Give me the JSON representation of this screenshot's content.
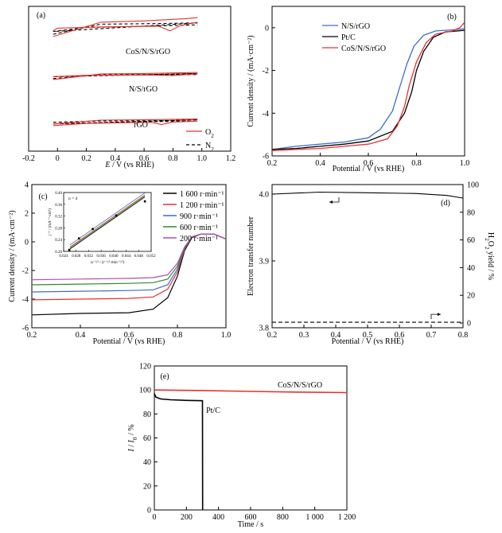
{
  "figure": "multi-panel electrochemistry figure",
  "chart_data": [
    {
      "panel": "(a)",
      "type": "line",
      "xlabel_italic": "E",
      "xlabel_rest": " / V (vs RHE)",
      "ylabel": "",
      "xlim": [
        -0.2,
        1.2
      ],
      "xticks": [
        "-0.2",
        "0",
        "0.2",
        "0.4",
        "0.6",
        "0.8",
        "1.0",
        "1.2"
      ],
      "legend": [
        {
          "name": "O",
          "sub": "2",
          "color": "#e8322f",
          "dash": false
        },
        {
          "name": "N",
          "sub": "2",
          "color": "#000000",
          "dash": true
        }
      ],
      "labels": [
        "CoS/N/S/rGO",
        "N/S/rGO",
        "rGO"
      ],
      "description": "Cyclic voltammograms in O2 (red) and N2 (black dashed) saturated electrolyte",
      "cv_series": [
        {
          "name": "CoS/N/S/rGO",
          "o2_reduction_peak_V": 0.77,
          "o2_anodic": [
            [
              -0.03,
              0.43
            ],
            [
              0.3,
              0.86
            ],
            [
              0.6,
              0.9
            ],
            [
              0.9,
              0.97
            ],
            [
              0.97,
              1.0
            ]
          ],
          "o2_cathodic": [
            [
              0.97,
              0.86
            ],
            [
              0.85,
              0.76
            ],
            [
              0.78,
              0.6
            ],
            [
              0.7,
              0.74
            ],
            [
              0.3,
              0.72
            ],
            [
              0.0,
              0.68
            ],
            [
              -0.03,
              0.6
            ]
          ],
          "n2_anodic": [
            [
              -0.03,
              0.5
            ],
            [
              0.3,
              0.8
            ],
            [
              0.7,
              0.82
            ],
            [
              0.97,
              0.84
            ]
          ],
          "n2_cathodic": [
            [
              0.97,
              0.78
            ],
            [
              0.6,
              0.74
            ],
            [
              0.2,
              0.7
            ],
            [
              -0.03,
              0.58
            ]
          ]
        },
        {
          "name": "N/S/rGO",
          "o2_reduction_peak_V": 0.8,
          "o2_anodic": [
            [
              -0.03,
              0.16
            ],
            [
              0.3,
              0.48
            ],
            [
              0.6,
              0.5
            ],
            [
              0.97,
              0.56
            ]
          ],
          "o2_cathodic": [
            [
              0.97,
              0.48
            ],
            [
              0.8,
              0.39
            ],
            [
              0.6,
              0.42
            ],
            [
              0.2,
              0.4
            ],
            [
              -0.03,
              0.33
            ]
          ],
          "n2_anodic": [
            [
              -0.03,
              0.22
            ],
            [
              0.3,
              0.44
            ],
            [
              0.7,
              0.45
            ],
            [
              0.97,
              0.5
            ]
          ],
          "n2_cathodic": [
            [
              0.97,
              0.44
            ],
            [
              0.6,
              0.42
            ],
            [
              0.2,
              0.4
            ],
            [
              -0.03,
              0.32
            ]
          ]
        },
        {
          "name": "rGO",
          "o2_reduction_peak_V": 0.72,
          "o2_anodic": [
            [
              -0.03,
              0.02
            ],
            [
              0.3,
              0.16
            ],
            [
              0.6,
              0.17
            ],
            [
              0.97,
              0.2
            ]
          ],
          "o2_cathodic": [
            [
              0.97,
              0.12
            ],
            [
              0.8,
              0.09
            ],
            [
              0.72,
              0.0
            ],
            [
              0.65,
              0.08
            ],
            [
              0.2,
              0.04
            ],
            [
              -0.03,
              -0.04
            ]
          ],
          "n2_anodic": [
            [
              -0.03,
              0.08
            ],
            [
              0.3,
              0.13
            ],
            [
              0.7,
              0.14
            ],
            [
              0.97,
              0.17
            ]
          ],
          "n2_cathodic": [
            [
              0.97,
              0.12
            ],
            [
              0.6,
              0.1
            ],
            [
              0.2,
              0.06
            ],
            [
              -0.03,
              0.02
            ]
          ]
        }
      ]
    },
    {
      "panel": "(b)",
      "type": "line",
      "xlabel": "Potential / V (vs RHE)",
      "ylabel": "Current density / (mA·cm⁻²)",
      "xlim": [
        0.2,
        1.0
      ],
      "ylim": [
        -6,
        1
      ],
      "xticks": [
        "0.2",
        "0.4",
        "0.6",
        "0.8",
        "1.0"
      ],
      "yticks": [
        "0",
        "-2",
        "-4",
        "-6"
      ],
      "series": [
        {
          "name": "N/S/rGO",
          "color": "#3f6fc4",
          "points": [
            [
              0.2,
              -5.7
            ],
            [
              0.3,
              -5.55
            ],
            [
              0.4,
              -5.45
            ],
            [
              0.5,
              -5.35
            ],
            [
              0.6,
              -5.15
            ],
            [
              0.65,
              -4.75
            ],
            [
              0.7,
              -3.9
            ],
            [
              0.73,
              -2.8
            ],
            [
              0.76,
              -1.7
            ],
            [
              0.79,
              -0.85
            ],
            [
              0.83,
              -0.35
            ],
            [
              0.88,
              -0.15
            ],
            [
              0.95,
              -0.1
            ],
            [
              1.0,
              -0.05
            ]
          ]
        },
        {
          "name": "Pt/C",
          "color": "#000000",
          "points": [
            [
              0.2,
              -5.7
            ],
            [
              0.3,
              -5.65
            ],
            [
              0.4,
              -5.55
            ],
            [
              0.5,
              -5.45
            ],
            [
              0.6,
              -5.3
            ],
            [
              0.7,
              -4.85
            ],
            [
              0.75,
              -4.0
            ],
            [
              0.78,
              -3.0
            ],
            [
              0.8,
              -2.0
            ],
            [
              0.83,
              -1.1
            ],
            [
              0.87,
              -0.45
            ],
            [
              0.92,
              -0.2
            ],
            [
              1.0,
              -0.12
            ]
          ]
        },
        {
          "name": "CoS/N/S/rGO",
          "color": "#e8322f",
          "points": [
            [
              0.2,
              -5.75
            ],
            [
              0.3,
              -5.7
            ],
            [
              0.4,
              -5.65
            ],
            [
              0.5,
              -5.55
            ],
            [
              0.6,
              -5.45
            ],
            [
              0.68,
              -5.2
            ],
            [
              0.72,
              -4.6
            ],
            [
              0.75,
              -3.7
            ],
            [
              0.77,
              -2.7
            ],
            [
              0.8,
              -1.6
            ],
            [
              0.84,
              -0.7
            ],
            [
              0.88,
              -0.3
            ],
            [
              0.95,
              -0.15
            ],
            [
              0.98,
              0.0
            ],
            [
              1.0,
              0.25
            ]
          ]
        }
      ]
    },
    {
      "panel": "(c)",
      "type": "line",
      "xlabel": "Potential / V (vs RHE)",
      "ylabel": "Current density / (mA·cm⁻²)",
      "xlim": [
        0.2,
        1.0
      ],
      "ylim": [
        -6,
        4
      ],
      "xticks": [
        "0.2",
        "0.4",
        "0.6",
        "0.8",
        "1.0"
      ],
      "yticks": [
        "4",
        "2",
        "0",
        "-2",
        "-4",
        "-6"
      ],
      "series": [
        {
          "name": "1 600 r·min⁻¹",
          "color": "#000000",
          "plateau": -5.1,
          "points": [
            [
              0.2,
              -5.1
            ],
            [
              0.4,
              -5.0
            ],
            [
              0.6,
              -4.95
            ],
            [
              0.7,
              -4.7
            ],
            [
              0.76,
              -3.9
            ],
            [
              0.8,
              -2.4
            ],
            [
              0.83,
              -0.6
            ],
            [
              0.86,
              0.3
            ],
            [
              0.9,
              0.55
            ],
            [
              0.95,
              0.55
            ],
            [
              1.0,
              0.2
            ]
          ]
        },
        {
          "name": "1 200 r·min⁻¹",
          "color": "#e8322f",
          "plateau": -4.05,
          "points": [
            [
              0.2,
              -4.05
            ],
            [
              0.4,
              -4.0
            ],
            [
              0.6,
              -3.95
            ],
            [
              0.7,
              -3.85
            ],
            [
              0.76,
              -3.3
            ],
            [
              0.8,
              -2.1
            ],
            [
              0.83,
              -0.5
            ],
            [
              0.86,
              0.35
            ],
            [
              0.9,
              0.55
            ],
            [
              0.95,
              0.55
            ],
            [
              1.0,
              0.2
            ]
          ]
        },
        {
          "name": "900 r·min⁻¹",
          "color": "#3f6fc4",
          "plateau": -3.5,
          "points": [
            [
              0.2,
              -3.5
            ],
            [
              0.4,
              -3.45
            ],
            [
              0.6,
              -3.4
            ],
            [
              0.7,
              -3.35
            ],
            [
              0.76,
              -3.0
            ],
            [
              0.8,
              -1.9
            ],
            [
              0.83,
              -0.45
            ],
            [
              0.86,
              0.35
            ],
            [
              0.9,
              0.55
            ],
            [
              0.95,
              0.55
            ],
            [
              1.0,
              0.2
            ]
          ]
        },
        {
          "name": "600 r·min⁻¹",
          "color": "#2f8a2f",
          "plateau": -3.0,
          "points": [
            [
              0.2,
              -3.0
            ],
            [
              0.4,
              -2.95
            ],
            [
              0.6,
              -2.9
            ],
            [
              0.7,
              -2.85
            ],
            [
              0.76,
              -2.6
            ],
            [
              0.8,
              -1.7
            ],
            [
              0.83,
              -0.4
            ],
            [
              0.86,
              0.35
            ],
            [
              0.9,
              0.55
            ],
            [
              0.95,
              0.55
            ],
            [
              1.0,
              0.2
            ]
          ]
        },
        {
          "name": "200 r·min⁻¹",
          "color": "#b04fb0",
          "plateau": -2.65,
          "points": [
            [
              0.2,
              -2.65
            ],
            [
              0.4,
              -2.6
            ],
            [
              0.6,
              -2.55
            ],
            [
              0.7,
              -2.5
            ],
            [
              0.76,
              -2.3
            ],
            [
              0.8,
              -1.5
            ],
            [
              0.83,
              -0.35
            ],
            [
              0.86,
              0.35
            ],
            [
              0.9,
              0.55
            ],
            [
              0.95,
              0.55
            ],
            [
              1.0,
              0.2
            ]
          ]
        }
      ],
      "inset": {
        "annotation": "n = 4",
        "xlabel": "ω⁻¹/² / (r⁻¹/²·min⁻¹/²)",
        "ylabel": "j⁻¹ / (mA⁻¹·cm²)",
        "xlim": [
          0.024,
          0.052
        ],
        "ylim": [
          0.2,
          0.4
        ],
        "xticks": [
          "0.024",
          "0.028",
          "0.032",
          "0.036",
          "0.040",
          "0.044",
          "0.048",
          "0.052"
        ],
        "yticks": [
          "0.40",
          "0.36",
          "0.32",
          "0.28",
          "0.24",
          "0.20"
        ],
        "lines": [
          {
            "color": "#000000",
            "points": [
              [
                0.026,
                0.208
              ],
              [
                0.05,
                0.385
              ]
            ]
          },
          {
            "color": "#e8322f",
            "points": [
              [
                0.026,
                0.215
              ],
              [
                0.05,
                0.392
              ]
            ]
          },
          {
            "color": "#3f6fc4",
            "points": [
              [
                0.026,
                0.222
              ],
              [
                0.05,
                0.399
              ]
            ]
          },
          {
            "color": "#2f8a2f",
            "points": [
              [
                0.026,
                0.212
              ],
              [
                0.05,
                0.388
              ]
            ]
          }
        ],
        "markers": [
          [
            0.0258,
            0.205
          ],
          [
            0.0289,
            0.244
          ],
          [
            0.0333,
            0.276
          ],
          [
            0.0408,
            0.322
          ],
          [
            0.05,
            0.37
          ]
        ]
      }
    },
    {
      "panel": "(d)",
      "type": "line",
      "xlabel": "Potential / V (vs RHE)",
      "ylabel_left": "Electron transfer number",
      "ylabel_right_parts": [
        "H",
        "2",
        "O",
        "2",
        " yield / %"
      ],
      "xlim": [
        0.2,
        0.8
      ],
      "ylim_left": [
        3.8,
        4.0
      ],
      "ylim_right": [
        0,
        100
      ],
      "xticks": [
        "0.2",
        "0.3",
        "0.4",
        "0.5",
        "0.6",
        "0.7",
        "0.8"
      ],
      "yticks_left": [
        "4.0",
        "3.9",
        "3.8"
      ],
      "yticks_right": [
        "100",
        "80",
        "60",
        "40",
        "20",
        "0"
      ],
      "series": [
        {
          "name": "Electron transfer number",
          "axis": "left",
          "color": "#000000",
          "dash": false,
          "points": [
            [
              0.2,
              4.0
            ],
            [
              0.35,
              4.003
            ],
            [
              0.5,
              4.002
            ],
            [
              0.65,
              4.001
            ],
            [
              0.75,
              3.998
            ],
            [
              0.8,
              3.994
            ]
          ]
        },
        {
          "name": "H2O2 yield",
          "axis": "right",
          "color": "#000000",
          "dash": true,
          "points": [
            [
              0.2,
              0.5
            ],
            [
              0.8,
              0.5
            ]
          ]
        }
      ]
    },
    {
      "panel": "(e)",
      "type": "line",
      "xlabel": "Time / s",
      "ylabel_parts": [
        "I",
        " / ",
        "I",
        "0",
        " / %"
      ],
      "xlim": [
        0,
        1200
      ],
      "ylim": [
        0,
        120
      ],
      "xticks": [
        "0",
        "200",
        "400",
        "600",
        "800",
        "1 000",
        "1 200"
      ],
      "yticks": [
        "120",
        "100",
        "80",
        "60",
        "40",
        "20",
        "0"
      ],
      "series": [
        {
          "name": "CoS/N/S/rGO",
          "color": "#e8322f",
          "points": [
            [
              0,
              100
            ],
            [
              300,
              99.5
            ],
            [
              600,
              98.8
            ],
            [
              900,
              98.2
            ],
            [
              1200,
              97.8
            ]
          ]
        },
        {
          "name": "Pt/C",
          "color": "#000000",
          "points": [
            [
              0,
              97
            ],
            [
              10,
              94
            ],
            [
              40,
              92.5
            ],
            [
              100,
              91.8
            ],
            [
              200,
              91.3
            ],
            [
              300,
              91.0
            ],
            [
              301,
              0
            ]
          ]
        }
      ]
    }
  ]
}
